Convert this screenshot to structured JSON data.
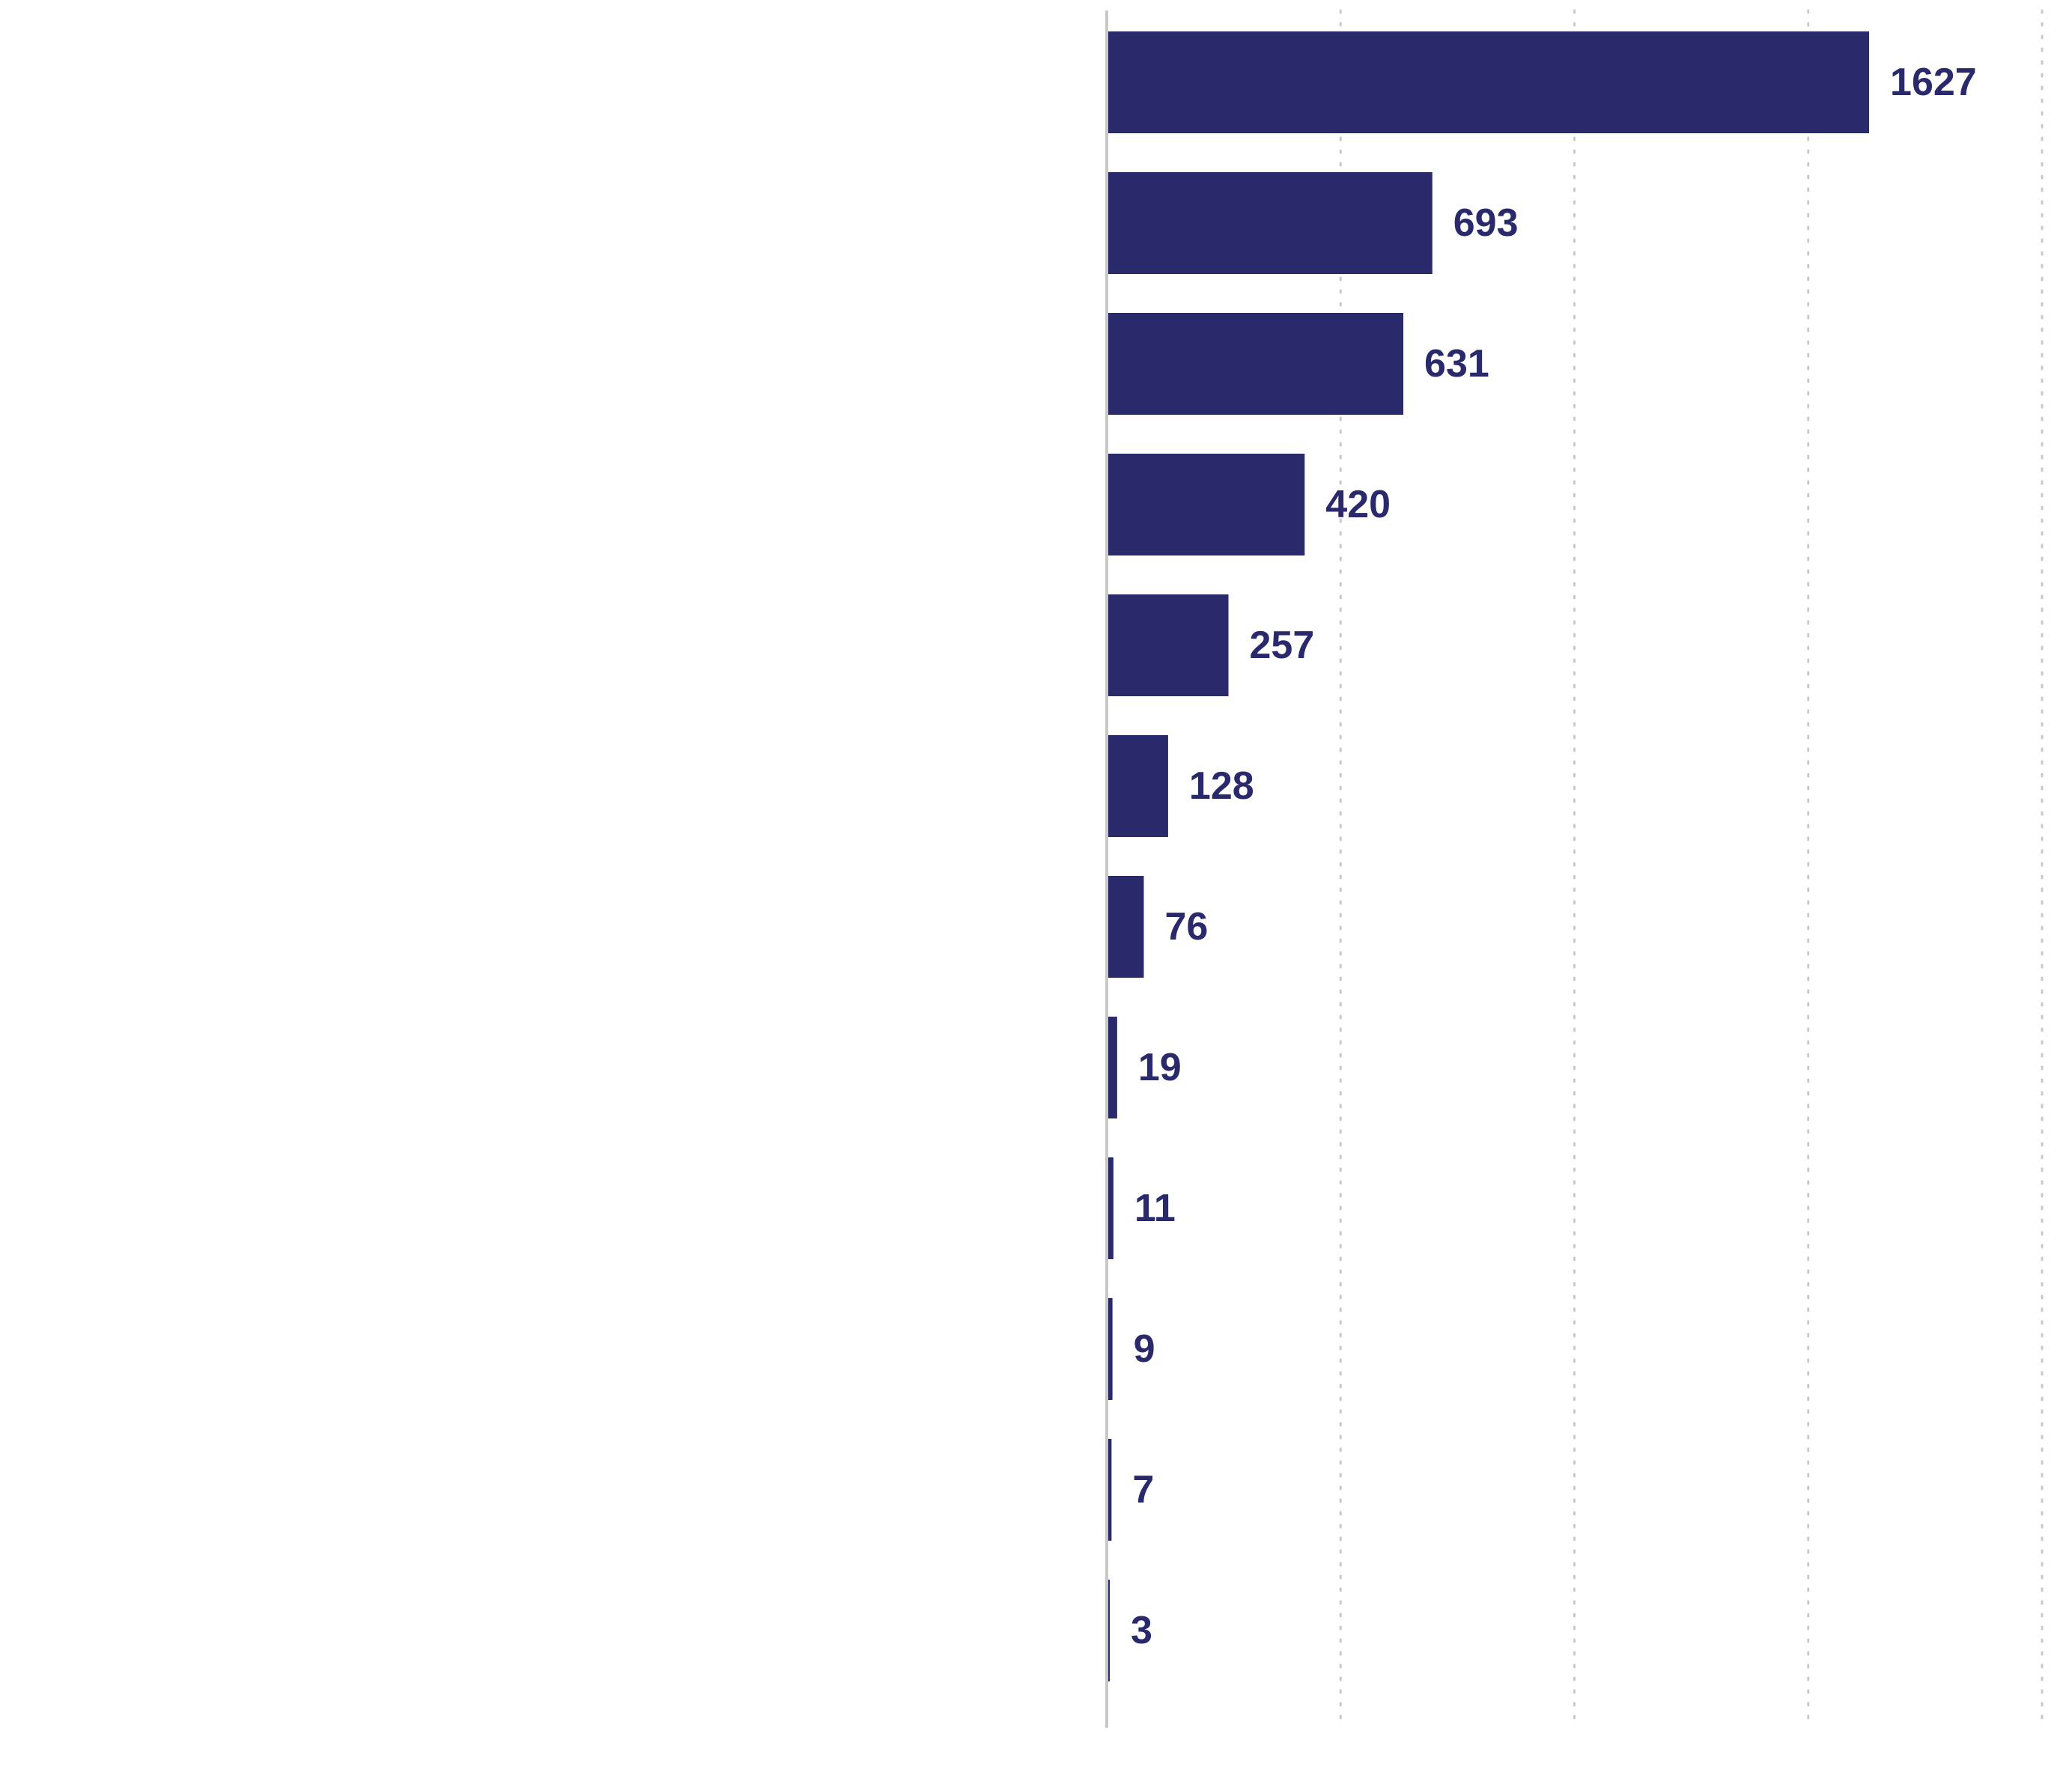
{
  "chart_data": {
    "type": "bar",
    "orientation": "horizontal",
    "title": "",
    "xlabel": "",
    "ylabel": "",
    "categories": [
      "",
      "",
      "",
      "",
      "",
      "",
      "",
      "",
      "",
      "",
      "",
      ""
    ],
    "values": [
      1627,
      693,
      631,
      420,
      257,
      128,
      76,
      19,
      11,
      9,
      7,
      3
    ],
    "xlim": [
      0,
      2000
    ],
    "x_gridlines": [
      0,
      500,
      1000,
      1500,
      2000
    ],
    "grid": "vertical dotted",
    "legend": "none",
    "data_labels": true
  },
  "colors": {
    "bar": "#29296b",
    "label": "#29296b",
    "axis": "#c8c8c8",
    "grid": "#c8c8d0"
  }
}
